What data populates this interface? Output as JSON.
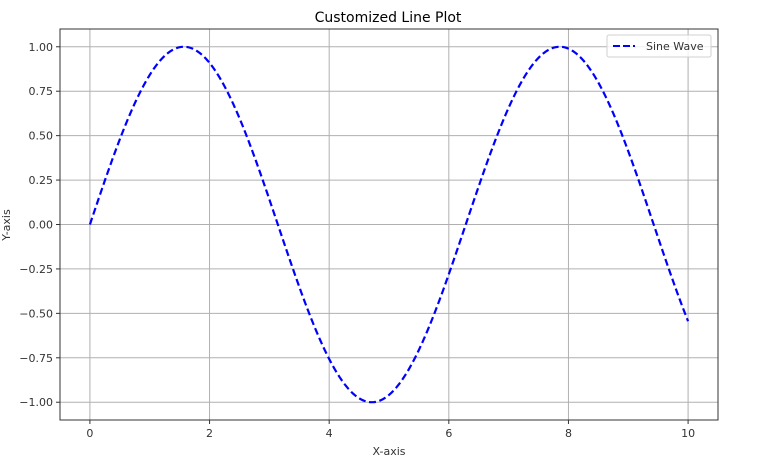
{
  "chart_data": {
    "type": "line",
    "title": "Customized Line Plot",
    "xlabel": "X-axis",
    "ylabel": "Y-axis",
    "xlim": [
      -0.5,
      10.5
    ],
    "ylim": [
      -1.1,
      1.1
    ],
    "grid": true,
    "legend_position": "upper right",
    "x_ticks": [
      0,
      2,
      4,
      6,
      8,
      10
    ],
    "x_tick_labels": [
      "0",
      "2",
      "4",
      "6",
      "8",
      "10"
    ],
    "y_ticks": [
      1.0,
      0.75,
      0.5,
      0.25,
      0.0,
      -0.25,
      -0.5,
      -0.75,
      -1.0
    ],
    "y_tick_labels": [
      "1.00",
      "0.75",
      "0.50",
      "0.25",
      "0.00",
      "−0.25",
      "−0.50",
      "−0.75",
      "−1.00"
    ],
    "series": [
      {
        "name": "Sine Wave",
        "color": "#0000ff",
        "linestyle": "dashed",
        "function": "sin(x)",
        "x": [
          0,
          0.5,
          1,
          1.5,
          1.571,
          2,
          2.5,
          3,
          3.5,
          4,
          4.5,
          4.712,
          5,
          5.5,
          6,
          6.5,
          7,
          7.5,
          7.854,
          8,
          8.5,
          9,
          9.5,
          10
        ],
        "values": [
          0.0,
          0.479,
          0.841,
          0.997,
          1.0,
          0.909,
          0.598,
          0.141,
          -0.351,
          -0.757,
          -0.978,
          -1.0,
          -0.959,
          -0.706,
          -0.279,
          0.215,
          0.657,
          0.938,
          1.0,
          0.989,
          0.798,
          0.412,
          -0.075,
          -0.544
        ]
      }
    ]
  }
}
